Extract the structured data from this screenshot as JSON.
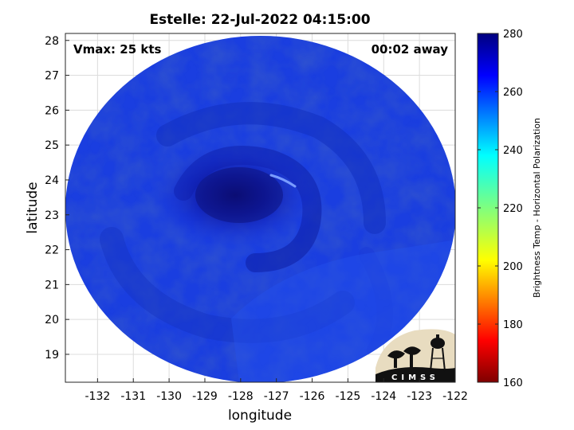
{
  "title": "Estelle: 22-Jul-2022 04:15:00",
  "overlay": {
    "vmax": "Vmax: 25 kts",
    "away": "00:02 away"
  },
  "axes": {
    "xlabel": "longitude",
    "ylabel": "latitude",
    "xlim": [
      -132.9,
      -122
    ],
    "ylim": [
      18.2,
      28.2
    ],
    "xticks": [
      -132,
      -131,
      -130,
      -129,
      -128,
      -127,
      -126,
      -125,
      -124,
      -123,
      -122
    ],
    "yticks": [
      19,
      20,
      21,
      22,
      23,
      24,
      25,
      26,
      27,
      28
    ],
    "grid": true
  },
  "colorbar": {
    "label": "Brightness Temp - Horizontal Polarization",
    "range": [
      160,
      280
    ],
    "ticks": [
      160,
      180,
      200,
      220,
      240,
      260,
      280
    ],
    "colormap": "jet"
  },
  "image": {
    "swath_shape": "circle",
    "swath_center": {
      "lon": -127.3,
      "lat": 23.3
    },
    "storm_center": {
      "lon": -127.5,
      "lat": 23.5
    },
    "background_temp_k": 266,
    "core_temp_k": 275
  },
  "logo": {
    "text": "CIMSS"
  },
  "colors": {
    "low": "#7f0000",
    "high": "#00007f"
  }
}
